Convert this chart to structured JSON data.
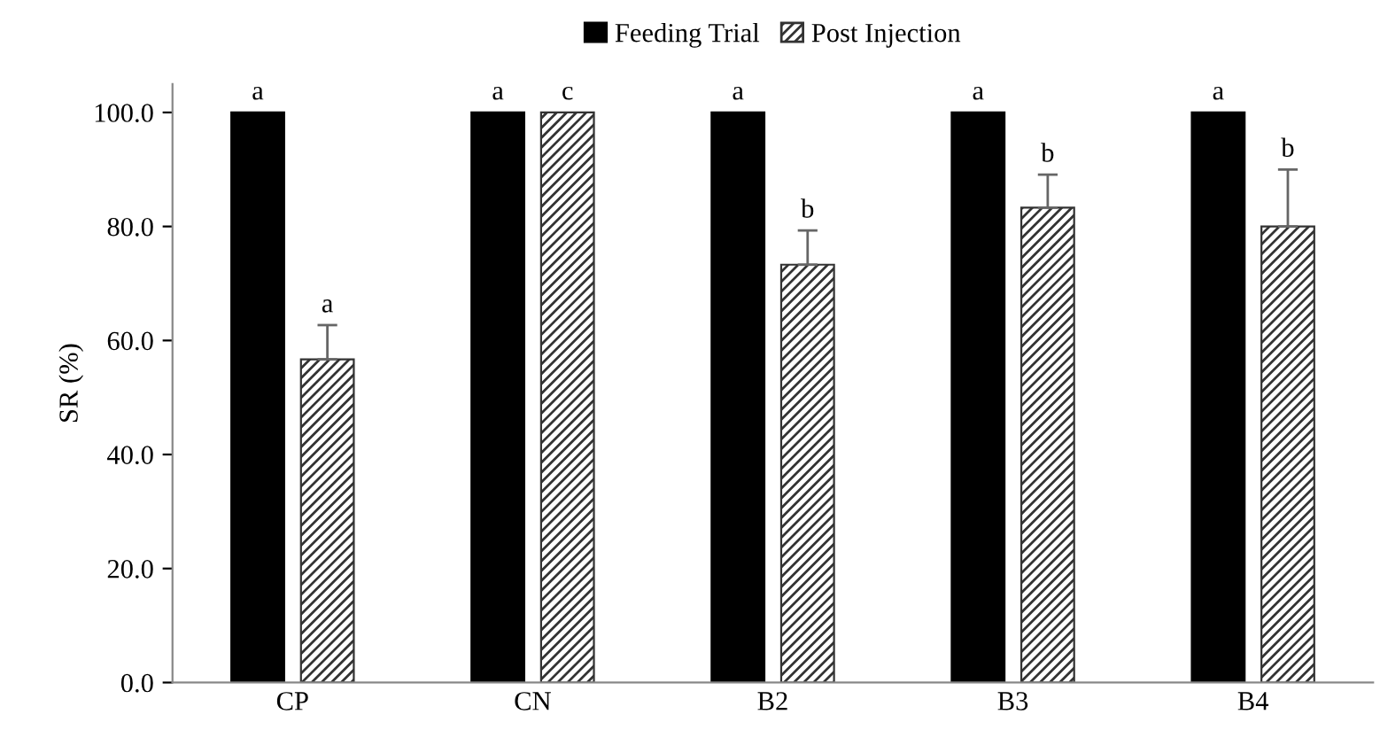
{
  "chart_data": {
    "type": "bar",
    "ylabel": "SR (%)",
    "categories": [
      "CP",
      "CN",
      "B2",
      "B3",
      "B4"
    ],
    "series": [
      {
        "name": "Feeding Trial",
        "color": "#000000",
        "values": [
          100.0,
          100.0,
          100.0,
          100.0,
          100.0
        ],
        "value_labels": [
          "a",
          "a",
          "a",
          "a",
          "a"
        ]
      },
      {
        "name": "Post Injection",
        "color": "#333333",
        "values": [
          56.7,
          100.0,
          73.3,
          83.3,
          80.0
        ],
        "errors": [
          6,
          null,
          6,
          5.8,
          10
        ],
        "value_labels": [
          "a",
          "c",
          "b",
          "b",
          "b"
        ]
      }
    ],
    "ylim": [
      0,
      105
    ],
    "yticks": [
      {
        "value": 0,
        "label": "0.0"
      },
      {
        "value": 20,
        "label": "20.0"
      },
      {
        "value": 40,
        "label": "40.0"
      },
      {
        "value": 60,
        "label": "60.0"
      },
      {
        "value": 80,
        "label": "80.0"
      },
      {
        "value": 100,
        "label": "100.0"
      }
    ],
    "legend": "top",
    "grid": false
  }
}
